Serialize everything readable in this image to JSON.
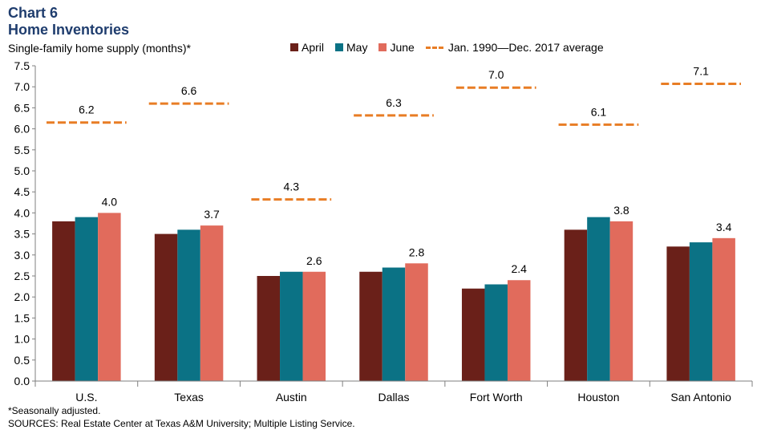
{
  "header": {
    "chart_number": "Chart 6",
    "title": "Home Inventories",
    "subtitle": "Single-family home supply (months)*"
  },
  "legend": {
    "april": "April",
    "may": "May",
    "june": "June",
    "average": "Jan. 1990—Dec. 2017 average"
  },
  "colors": {
    "april": "#6a2019",
    "may": "#0b7285",
    "june": "#e16b5c",
    "average": "#e87d25",
    "axis": "#7f7f7f"
  },
  "footer": {
    "note": "*Seasonally adjusted.",
    "sources": "SOURCES: Real Estate Center at Texas A&M University; Multiple Listing Service."
  },
  "chart_data": {
    "type": "bar",
    "title": "Home Inventories",
    "ylabel": "Single-family home supply (months)",
    "ylim": [
      0,
      7.5
    ],
    "ytick_step": 0.5,
    "categories": [
      "U.S.",
      "Texas",
      "Austin",
      "Dallas",
      "Fort Worth",
      "Houston",
      "San Antonio"
    ],
    "series": [
      {
        "name": "April",
        "values": [
          3.8,
          3.5,
          2.5,
          2.6,
          2.2,
          3.6,
          3.2
        ]
      },
      {
        "name": "May",
        "values": [
          3.9,
          3.6,
          2.6,
          2.7,
          2.3,
          3.9,
          3.3
        ]
      },
      {
        "name": "June",
        "values": [
          4.0,
          3.7,
          2.6,
          2.8,
          2.4,
          3.8,
          3.4
        ]
      }
    ],
    "june_labels": [
      "4.0",
      "3.7",
      "2.6",
      "2.8",
      "2.4",
      "3.8",
      "3.4"
    ],
    "average": {
      "name": "Jan. 1990—Dec. 2017 average",
      "values": [
        6.15,
        6.6,
        4.32,
        6.32,
        6.98,
        6.1,
        7.07
      ],
      "labels": [
        "6.2",
        "6.6",
        "4.3",
        "6.3",
        "7.0",
        "6.1",
        "7.1"
      ]
    },
    "legend_position": "top-right"
  }
}
